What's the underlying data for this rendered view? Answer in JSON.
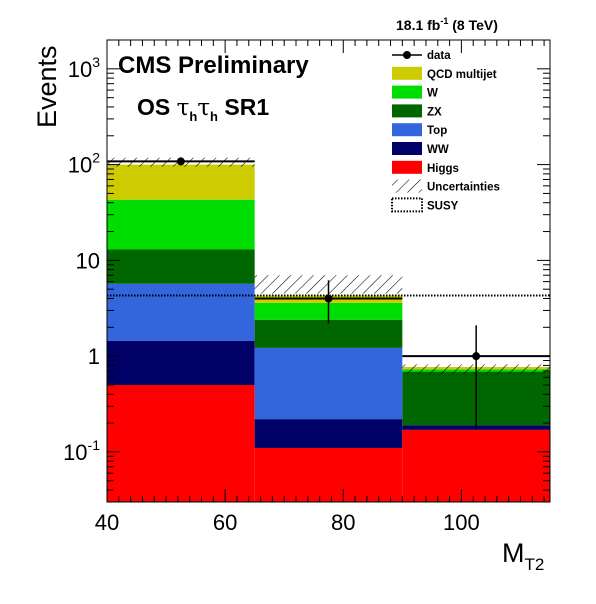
{
  "chart_data": {
    "type": "stacked-histogram",
    "title": "CMS Preliminary",
    "subtitle": {
      "main": "OS ",
      "tau": "τ",
      "sub": "h",
      "tail": " SR1"
    },
    "lumi": {
      "value": "18.1 fb",
      "exp": "-1",
      "tail": " (8 TeV)"
    },
    "ylabel": "Events",
    "xlabel": {
      "main": "M",
      "sub": "T2"
    },
    "yscale": "log",
    "xlim": [
      40,
      115
    ],
    "ylim": [
      0.03,
      2000
    ],
    "x_ticks": [
      40,
      60,
      80,
      100
    ],
    "y_ticks": [
      {
        "value": 0.1,
        "base": "10",
        "exp": "-1"
      },
      {
        "value": 1,
        "base": "1",
        "exp": ""
      },
      {
        "value": 10,
        "base": "10",
        "exp": ""
      },
      {
        "value": 100,
        "base": "10",
        "exp": "2"
      },
      {
        "value": 1000,
        "base": "10",
        "exp": "3"
      }
    ],
    "bins": [
      [
        40,
        65
      ],
      [
        65,
        90
      ],
      [
        90,
        115
      ]
    ],
    "stack": [
      {
        "name": "Higgs",
        "label": "Higgs",
        "color": "#ff0000",
        "values": [
          0.5,
          0.11,
          0.17
        ]
      },
      {
        "name": "WW",
        "label": "WW",
        "color": "#000066",
        "values": [
          0.95,
          0.11,
          0.02
        ]
      },
      {
        "name": "Top",
        "label": "Top",
        "color": "#3366dd",
        "values": [
          4.25,
          1.0,
          0.0
        ]
      },
      {
        "name": "ZX",
        "label": "ZX",
        "color": "#006600",
        "values": [
          7.3,
          1.18,
          0.5
        ]
      },
      {
        "name": "W",
        "label": "W",
        "color": "#00dd00",
        "values": [
          30.0,
          1.2,
          0.04
        ]
      },
      {
        "name": "QCD multijet",
        "label": "QCD multijet",
        "color": "#cccc00",
        "values": [
          57.0,
          0.7,
          0.04
        ]
      }
    ],
    "uncertainty": {
      "label": "Uncertainties",
      "low": [
        95,
        4.5,
        0.65
      ],
      "high": [
        118,
        7.0,
        0.82
      ]
    },
    "susy": {
      "label": "SUSY",
      "values": [
        4.3,
        4.3,
        4.3
      ]
    },
    "data": {
      "label": "data",
      "x": [
        52.5,
        77.5,
        102.5
      ],
      "y": [
        108,
        4,
        1
      ],
      "yerr_low": [
        10,
        1.8,
        0.83
      ],
      "yerr_high": [
        11,
        2.2,
        1.1
      ],
      "observed_line": [
        108,
        4,
        1
      ]
    },
    "legend_order": [
      "data",
      "QCD multijet",
      "W",
      "ZX",
      "Top",
      "WW",
      "Higgs",
      "Uncertainties",
      "SUSY"
    ],
    "legend_position": "top-right"
  }
}
